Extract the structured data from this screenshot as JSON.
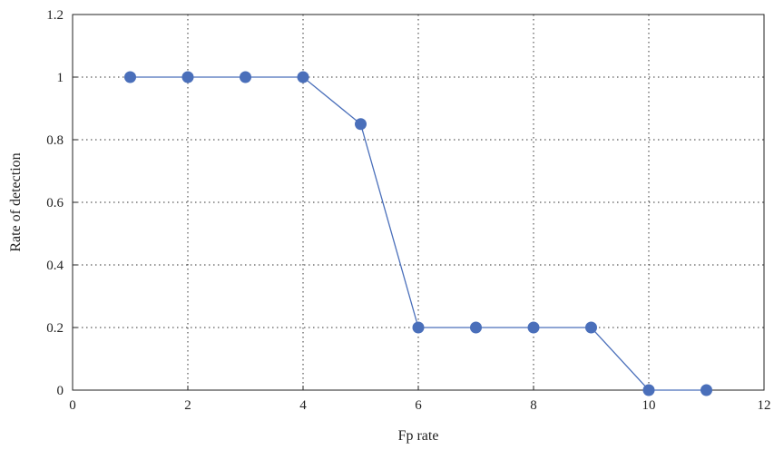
{
  "chart_data": {
    "type": "line",
    "title": "",
    "xlabel": "Fp rate",
    "ylabel": "Rate of detection",
    "xlim": [
      0,
      12
    ],
    "ylim": [
      0,
      1.2
    ],
    "xticks": [
      "0",
      "2",
      "4",
      "6",
      "8",
      "10",
      "12"
    ],
    "yticks": [
      "0",
      "0.2",
      "0.4",
      "0.6",
      "0.8",
      "1",
      "1.2"
    ],
    "grid": true,
    "legend": "none",
    "series": [
      {
        "x": [
          1,
          2,
          3,
          4,
          5,
          6,
          7,
          8,
          9,
          10,
          11
        ],
        "y": [
          1,
          1,
          1,
          1,
          0.85,
          0.2,
          0.2,
          0.2,
          0.2,
          0,
          0
        ],
        "color": "#4a6fba",
        "marker": "circle"
      }
    ]
  }
}
